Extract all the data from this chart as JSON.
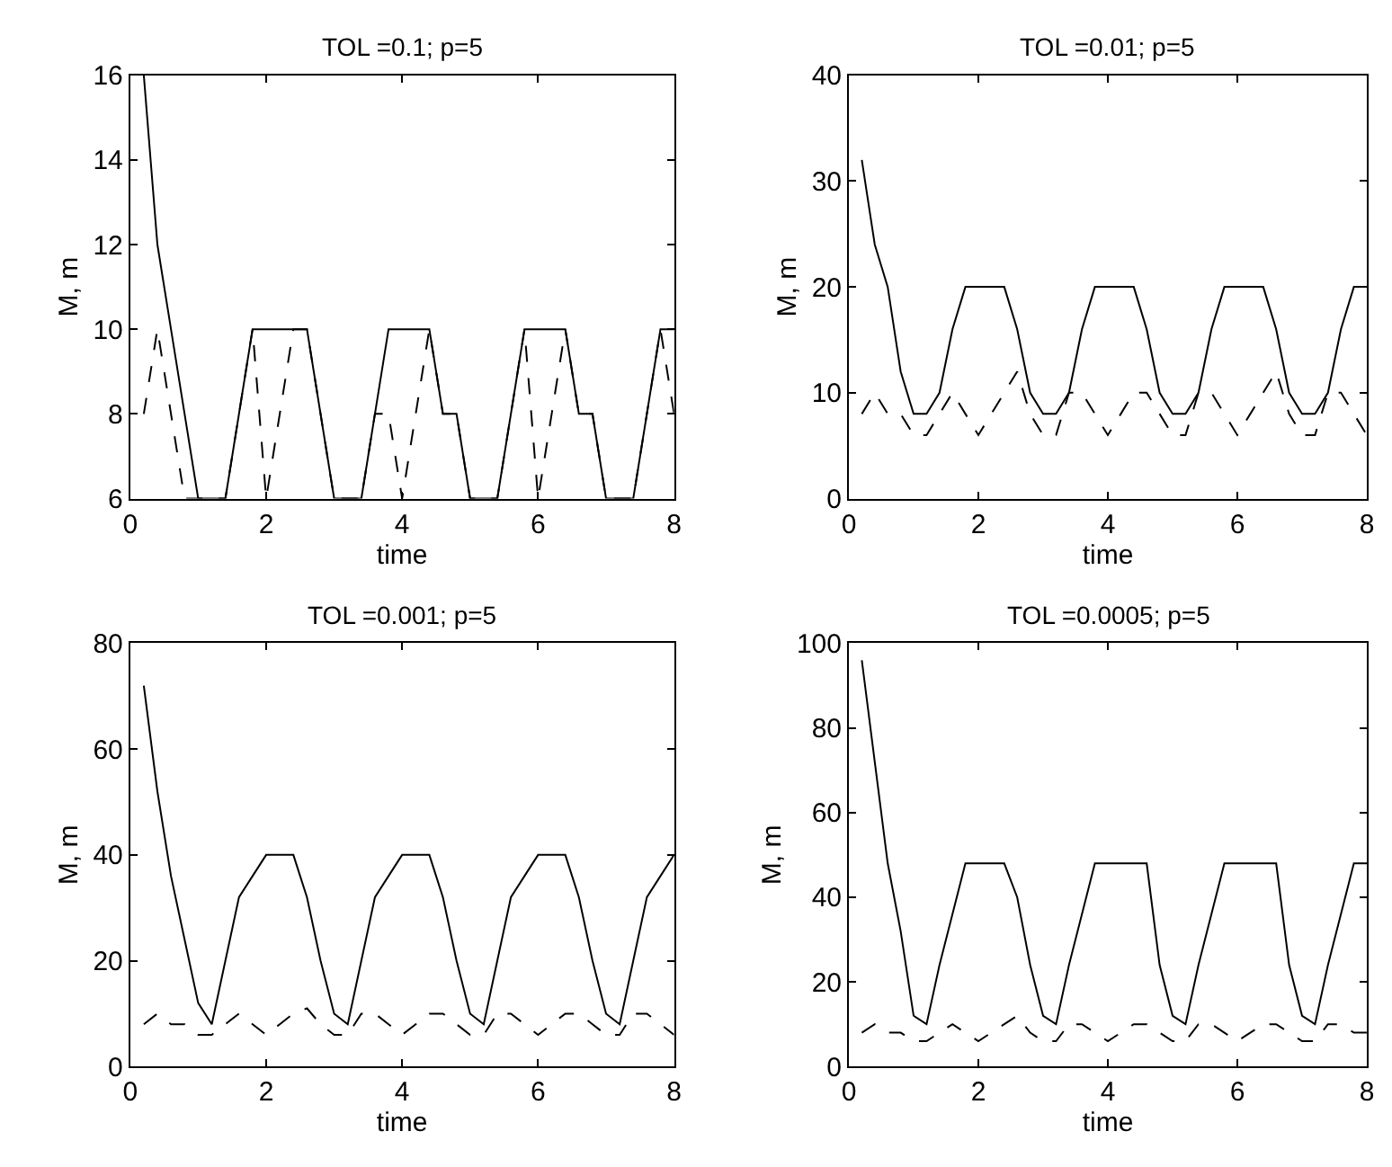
{
  "chart_data": [
    {
      "type": "line",
      "title": "TOL =0.1; p=5",
      "xlabel": "time",
      "ylabel": "M, m",
      "xlim": [
        0,
        8
      ],
      "xticks": [
        0,
        2,
        4,
        6,
        8
      ],
      "ylim": [
        6,
        16
      ],
      "yticks": [
        6,
        8,
        10,
        12,
        14,
        16
      ],
      "x": [
        0.2,
        0.4,
        0.6,
        0.8,
        1.0,
        1.2,
        1.4,
        1.6,
        1.8,
        2.0,
        2.2,
        2.4,
        2.6,
        2.8,
        3.0,
        3.2,
        3.4,
        3.6,
        3.8,
        4.0,
        4.2,
        4.4,
        4.6,
        4.8,
        5.0,
        5.2,
        5.4,
        5.6,
        5.8,
        6.0,
        6.2,
        6.4,
        6.6,
        6.8,
        7.0,
        7.2,
        7.4,
        7.6,
        7.8,
        8.0
      ],
      "series": [
        {
          "color": "#000000",
          "line_style": "solid",
          "values": [
            16,
            12,
            10,
            8,
            6,
            6,
            6,
            8,
            10,
            10,
            10,
            10,
            10,
            8,
            6,
            6,
            6,
            8,
            10,
            10,
            10,
            10,
            8,
            8,
            6,
            6,
            6,
            8,
            10,
            10,
            10,
            10,
            8,
            8,
            6,
            6,
            6,
            8,
            10,
            10
          ]
        },
        {
          "color": "#000000",
          "line_style": "dashed",
          "values": [
            8,
            10,
            8,
            6,
            6,
            6,
            6,
            8,
            10,
            6,
            8,
            10,
            10,
            8,
            6,
            6,
            6,
            8,
            8,
            6,
            8,
            10,
            8,
            8,
            6,
            6,
            6,
            8,
            10,
            6,
            8,
            10,
            8,
            8,
            6,
            6,
            6,
            8,
            10,
            8
          ]
        }
      ]
    },
    {
      "type": "line",
      "title": "TOL =0.01; p=5",
      "xlabel": "time",
      "ylabel": "M, m",
      "xlim": [
        0,
        8
      ],
      "xticks": [
        0,
        2,
        4,
        6,
        8
      ],
      "ylim": [
        0,
        40
      ],
      "yticks": [
        0,
        10,
        20,
        30,
        40
      ],
      "x": [
        0.2,
        0.4,
        0.6,
        0.8,
        1.0,
        1.2,
        1.4,
        1.6,
        1.8,
        2.0,
        2.2,
        2.4,
        2.6,
        2.8,
        3.0,
        3.2,
        3.4,
        3.6,
        3.8,
        4.0,
        4.2,
        4.4,
        4.6,
        4.8,
        5.0,
        5.2,
        5.4,
        5.6,
        5.8,
        6.0,
        6.2,
        6.4,
        6.6,
        6.8,
        7.0,
        7.2,
        7.4,
        7.6,
        7.8,
        8.0
      ],
      "series": [
        {
          "color": "#000000",
          "line_style": "solid",
          "values": [
            32,
            24,
            20,
            12,
            8,
            8,
            10,
            16,
            20,
            20,
            20,
            20,
            16,
            10,
            8,
            8,
            10,
            16,
            20,
            20,
            20,
            20,
            16,
            10,
            8,
            8,
            10,
            16,
            20,
            20,
            20,
            20,
            16,
            10,
            8,
            8,
            10,
            16,
            20,
            20
          ]
        },
        {
          "color": "#000000",
          "line_style": "dashed",
          "values": [
            8,
            10,
            8,
            8,
            6,
            6,
            8,
            10,
            8,
            6,
            8,
            10,
            12,
            8,
            6,
            6,
            10,
            10,
            8,
            6,
            8,
            10,
            10,
            8,
            6,
            6,
            10,
            10,
            8,
            6,
            8,
            10,
            12,
            8,
            6,
            6,
            10,
            10,
            8,
            6
          ]
        }
      ]
    },
    {
      "type": "line",
      "title": "TOL =0.001; p=5",
      "xlabel": "time",
      "ylabel": "M, m",
      "xlim": [
        0,
        8
      ],
      "xticks": [
        0,
        2,
        4,
        6,
        8
      ],
      "ylim": [
        0,
        80
      ],
      "yticks": [
        0,
        20,
        40,
        60,
        80
      ],
      "x": [
        0.2,
        0.4,
        0.6,
        0.8,
        1.0,
        1.2,
        1.4,
        1.6,
        1.8,
        2.0,
        2.2,
        2.4,
        2.6,
        2.8,
        3.0,
        3.2,
        3.4,
        3.6,
        3.8,
        4.0,
        4.2,
        4.4,
        4.6,
        4.8,
        5.0,
        5.2,
        5.4,
        5.6,
        5.8,
        6.0,
        6.2,
        6.4,
        6.6,
        6.8,
        7.0,
        7.2,
        7.4,
        7.6,
        7.8,
        8.0
      ],
      "series": [
        {
          "color": "#000000",
          "line_style": "solid",
          "values": [
            72,
            52,
            36,
            24,
            12,
            8,
            20,
            32,
            36,
            40,
            40,
            40,
            32,
            20,
            10,
            8,
            20,
            32,
            36,
            40,
            40,
            40,
            32,
            20,
            10,
            8,
            20,
            32,
            36,
            40,
            40,
            40,
            32,
            20,
            10,
            8,
            20,
            32,
            36,
            40
          ]
        },
        {
          "color": "#000000",
          "line_style": "dashed",
          "values": [
            8,
            10,
            8,
            8,
            6,
            6,
            8,
            10,
            8,
            6,
            8,
            10,
            11,
            8,
            6,
            6,
            10,
            10,
            8,
            6,
            8,
            10,
            10,
            8,
            6,
            6,
            10,
            10,
            8,
            6,
            8,
            10,
            10,
            8,
            6,
            6,
            10,
            10,
            8,
            6
          ]
        }
      ]
    },
    {
      "type": "line",
      "title": "TOL =0.0005; p=5",
      "xlabel": "time",
      "ylabel": "M, m",
      "xlim": [
        0,
        8
      ],
      "xticks": [
        0,
        2,
        4,
        6,
        8
      ],
      "ylim": [
        0,
        100
      ],
      "yticks": [
        0,
        20,
        40,
        60,
        80,
        100
      ],
      "x": [
        0.2,
        0.4,
        0.6,
        0.8,
        1.0,
        1.2,
        1.4,
        1.6,
        1.8,
        2.0,
        2.2,
        2.4,
        2.6,
        2.8,
        3.0,
        3.2,
        3.4,
        3.6,
        3.8,
        4.0,
        4.2,
        4.4,
        4.6,
        4.8,
        5.0,
        5.2,
        5.4,
        5.6,
        5.8,
        6.0,
        6.2,
        6.4,
        6.6,
        6.8,
        7.0,
        7.2,
        7.4,
        7.6,
        7.8,
        8.0
      ],
      "series": [
        {
          "color": "#000000",
          "line_style": "solid",
          "values": [
            96,
            72,
            48,
            32,
            12,
            10,
            24,
            36,
            48,
            48,
            48,
            48,
            40,
            24,
            12,
            10,
            24,
            36,
            48,
            48,
            48,
            48,
            48,
            24,
            12,
            10,
            24,
            36,
            48,
            48,
            48,
            48,
            48,
            24,
            12,
            10,
            24,
            36,
            48,
            48
          ]
        },
        {
          "color": "#000000",
          "line_style": "dashed",
          "values": [
            8,
            10,
            8,
            8,
            6,
            6,
            8,
            10,
            8,
            6,
            8,
            10,
            12,
            8,
            6,
            6,
            10,
            10,
            8,
            6,
            8,
            10,
            10,
            8,
            6,
            6,
            10,
            10,
            8,
            6,
            8,
            10,
            10,
            8,
            6,
            6,
            10,
            10,
            8,
            8
          ]
        }
      ]
    }
  ]
}
